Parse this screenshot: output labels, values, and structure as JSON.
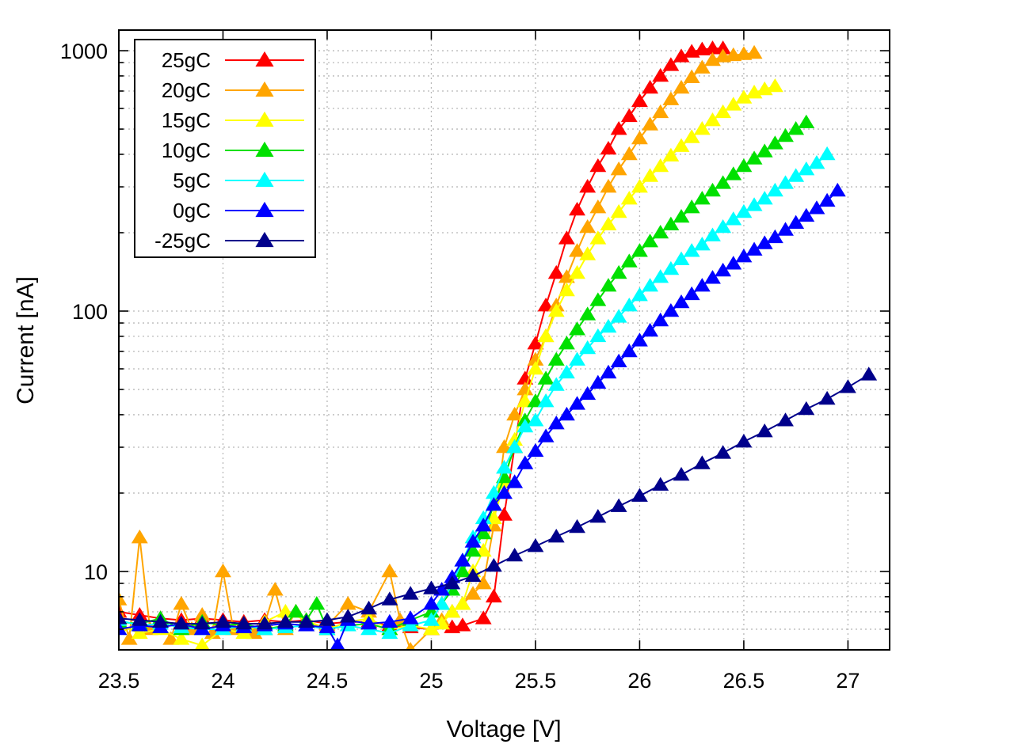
{
  "chart_data": {
    "type": "line",
    "title": "",
    "xlabel": "Voltage [V]",
    "ylabel": "Current [nA]",
    "xlim": [
      23.5,
      27.2
    ],
    "ylim": [
      5,
      1200
    ],
    "yscale": "log",
    "grid": true,
    "legend_position": "top-left",
    "x_ticks": [
      23.5,
      24,
      24.5,
      25,
      25.5,
      26,
      26.5,
      27
    ],
    "x_tick_labels": [
      "23.5",
      "24",
      "24.5",
      "25",
      "25.5",
      "26",
      "26.5",
      "27"
    ],
    "y_ticks": [
      10,
      100,
      1000
    ],
    "y_tick_labels": [
      "10",
      "100",
      "1000"
    ],
    "series": [
      {
        "name": "25gC",
        "color": "#ff0000",
        "x": [
          23.5,
          23.6,
          23.7,
          23.8,
          23.9,
          24.0,
          24.1,
          24.2,
          24.3,
          24.4,
          24.5,
          24.6,
          24.7,
          24.8,
          24.9,
          25.0,
          25.1,
          25.15,
          25.25,
          25.3,
          25.35,
          25.4,
          25.45,
          25.5,
          25.55,
          25.6,
          25.65,
          25.7,
          25.75,
          25.8,
          25.85,
          25.9,
          25.95,
          26.0,
          26.05,
          26.1,
          26.15,
          26.2,
          26.25,
          26.3,
          26.35,
          26.4
        ],
        "y": [
          7.0,
          6.8,
          6.6,
          6.5,
          6.6,
          6.5,
          6.4,
          6.5,
          6.4,
          6.5,
          6.3,
          6.4,
          6.4,
          6.2,
          6.1,
          6.0,
          6.1,
          6.2,
          6.6,
          8.0,
          16.5,
          30,
          55,
          75,
          105,
          140,
          190,
          245,
          300,
          360,
          420,
          500,
          560,
          640,
          720,
          800,
          880,
          950,
          990,
          1010,
          1020,
          1020
        ]
      },
      {
        "name": "20gC",
        "color": "#ffa500",
        "x": [
          23.5,
          23.55,
          23.6,
          23.65,
          23.7,
          23.75,
          23.8,
          23.85,
          23.9,
          23.95,
          24.0,
          24.05,
          24.1,
          24.15,
          24.2,
          24.25,
          24.3,
          24.35,
          24.4,
          24.5,
          24.6,
          24.7,
          24.8,
          24.85,
          24.9,
          25.0,
          25.05,
          25.1,
          25.15,
          25.2,
          25.25,
          25.3,
          25.35,
          25.4,
          25.45,
          25.5,
          25.55,
          25.6,
          25.65,
          25.7,
          25.75,
          25.8,
          25.85,
          25.9,
          25.95,
          26.0,
          26.05,
          26.1,
          26.15,
          26.2,
          26.25,
          26.3,
          26.35,
          26.4,
          26.45,
          26.5,
          26.55
        ],
        "y": [
          7.8,
          5.5,
          13.5,
          6.0,
          6.5,
          5.5,
          7.5,
          6.0,
          6.8,
          5.8,
          10.0,
          6.0,
          6.2,
          5.8,
          6.3,
          8.5,
          6.0,
          7.0,
          6.2,
          6.2,
          7.5,
          7.0,
          10.0,
          6.5,
          5.0,
          6.0,
          6.5,
          7.0,
          7.5,
          8.2,
          9.0,
          15,
          30,
          40,
          50,
          65,
          80,
          105,
          135,
          170,
          210,
          250,
          300,
          350,
          400,
          460,
          520,
          580,
          650,
          720,
          790,
          860,
          920,
          950,
          960,
          970,
          980
        ]
      },
      {
        "name": "15gC",
        "color": "#ffff00",
        "x": [
          23.5,
          23.6,
          23.7,
          23.8,
          23.9,
          24.0,
          24.1,
          24.2,
          24.3,
          24.4,
          24.5,
          24.6,
          24.7,
          24.8,
          24.9,
          25.0,
          25.05,
          25.1,
          25.15,
          25.2,
          25.25,
          25.3,
          25.35,
          25.4,
          25.45,
          25.5,
          25.55,
          25.6,
          25.65,
          25.7,
          25.75,
          25.8,
          25.85,
          25.9,
          25.95,
          26.0,
          26.05,
          26.1,
          26.15,
          26.2,
          26.25,
          26.3,
          26.35,
          26.4,
          26.45,
          26.5,
          26.55,
          26.6,
          26.65
        ],
        "y": [
          6.2,
          5.8,
          6.0,
          5.5,
          5.2,
          6.0,
          5.8,
          6.4,
          7.0,
          6.5,
          6.0,
          6.4,
          6.6,
          6.0,
          6.2,
          6.0,
          6.3,
          7.0,
          7.5,
          10.0,
          12.0,
          16.0,
          22.0,
          32.0,
          45,
          60,
          80,
          100,
          120,
          140,
          165,
          190,
          215,
          240,
          270,
          300,
          330,
          360,
          395,
          430,
          465,
          500,
          540,
          580,
          620,
          660,
          690,
          710,
          730
        ]
      },
      {
        "name": "10gC",
        "color": "#00e000",
        "x": [
          23.5,
          23.6,
          23.7,
          23.8,
          23.9,
          24.0,
          24.1,
          24.2,
          24.3,
          24.35,
          24.4,
          24.45,
          24.5,
          24.6,
          24.7,
          24.8,
          24.9,
          25.0,
          25.05,
          25.1,
          25.15,
          25.2,
          25.25,
          25.3,
          25.35,
          25.4,
          25.45,
          25.5,
          25.55,
          25.6,
          25.65,
          25.7,
          25.75,
          25.8,
          25.85,
          25.9,
          25.95,
          26.0,
          26.05,
          26.1,
          26.15,
          26.2,
          26.25,
          26.3,
          26.35,
          26.4,
          26.45,
          26.5,
          26.55,
          26.6,
          26.65,
          26.7,
          26.75,
          26.8
        ],
        "y": [
          6.4,
          6.3,
          6.6,
          6.0,
          6.4,
          6.2,
          6.3,
          6.0,
          6.2,
          7.0,
          6.5,
          7.5,
          6.0,
          6.2,
          6.3,
          6.0,
          6.5,
          7.0,
          7.5,
          8.5,
          10.0,
          12.0,
          14.0,
          18.0,
          23.0,
          30.0,
          38.0,
          45.0,
          55,
          65,
          75,
          85,
          97,
          110,
          125,
          140,
          155,
          170,
          185,
          200,
          215,
          230,
          250,
          270,
          290,
          310,
          335,
          360,
          385,
          410,
          440,
          470,
          500,
          530
        ]
      },
      {
        "name": "5gC",
        "color": "#00ffff",
        "x": [
          23.5,
          23.6,
          23.7,
          23.8,
          23.9,
          24.0,
          24.1,
          24.2,
          24.3,
          24.4,
          24.5,
          24.6,
          24.7,
          24.8,
          24.9,
          25.0,
          25.05,
          25.1,
          25.15,
          25.2,
          25.25,
          25.3,
          25.35,
          25.4,
          25.45,
          25.5,
          25.55,
          25.6,
          25.65,
          25.7,
          25.75,
          25.8,
          25.85,
          25.9,
          25.95,
          26.0,
          26.05,
          26.1,
          26.15,
          26.2,
          26.25,
          26.3,
          26.35,
          26.4,
          26.45,
          26.5,
          26.55,
          26.6,
          26.65,
          26.7,
          26.75,
          26.8,
          26.85,
          26.9
        ],
        "y": [
          6.5,
          6.2,
          6.3,
          6.1,
          6.0,
          6.0,
          6.2,
          6.0,
          6.1,
          6.2,
          6.0,
          6.2,
          6.0,
          5.8,
          6.2,
          6.5,
          7.5,
          9.0,
          11.0,
          13.5,
          16.0,
          20.0,
          25.0,
          30.0,
          36.0,
          38.0,
          45.0,
          52.0,
          58,
          65,
          72,
          80,
          87,
          95,
          105,
          115,
          125,
          135,
          145,
          158,
          170,
          180,
          195,
          210,
          225,
          240,
          255,
          270,
          290,
          310,
          330,
          350,
          370,
          400
        ]
      },
      {
        "name": "0gC",
        "color": "#0000ff",
        "x": [
          23.5,
          23.6,
          23.7,
          23.8,
          23.9,
          24.0,
          24.1,
          24.2,
          24.3,
          24.4,
          24.5,
          24.55,
          24.6,
          24.7,
          24.8,
          24.9,
          25.0,
          25.05,
          25.1,
          25.15,
          25.2,
          25.25,
          25.3,
          25.35,
          25.4,
          25.45,
          25.5,
          25.55,
          25.6,
          25.65,
          25.7,
          25.75,
          25.8,
          25.85,
          25.9,
          25.95,
          26.0,
          26.05,
          26.1,
          26.15,
          26.2,
          26.25,
          26.3,
          26.35,
          26.4,
          26.45,
          26.5,
          26.55,
          26.6,
          26.65,
          26.7,
          26.75,
          26.8,
          26.85,
          26.9,
          26.95
        ],
        "y": [
          6.0,
          6.2,
          6.1,
          6.3,
          6.0,
          6.2,
          6.1,
          6.2,
          6.3,
          6.2,
          6.1,
          5.2,
          6.5,
          6.3,
          6.4,
          6.6,
          7.5,
          8.5,
          9.5,
          11.0,
          13.0,
          15.0,
          18.0,
          20.0,
          22.0,
          26.0,
          29.0,
          33.0,
          37.0,
          40,
          44,
          48,
          53,
          58,
          64,
          70,
          77,
          84,
          92,
          100,
          108,
          116,
          125,
          134,
          143,
          152,
          162,
          172,
          182,
          192,
          205,
          218,
          232,
          248,
          265,
          290
        ]
      },
      {
        "name": "-25gC",
        "color": "#00008b",
        "x": [
          23.5,
          23.6,
          23.7,
          23.8,
          23.9,
          24.0,
          24.1,
          24.2,
          24.3,
          24.4,
          24.5,
          24.6,
          24.7,
          24.8,
          24.9,
          25.0,
          25.1,
          25.2,
          25.3,
          25.4,
          25.5,
          25.6,
          25.7,
          25.8,
          25.9,
          26.0,
          26.1,
          26.2,
          26.3,
          26.4,
          26.5,
          26.6,
          26.7,
          26.8,
          26.9,
          27.0,
          27.1
        ],
        "y": [
          6.6,
          6.5,
          6.4,
          6.3,
          6.3,
          6.4,
          6.3,
          6.3,
          6.4,
          6.4,
          6.5,
          6.7,
          7.2,
          7.8,
          8.2,
          8.6,
          9.0,
          9.6,
          10.5,
          11.5,
          12.5,
          13.6,
          14.8,
          16.2,
          17.8,
          19.5,
          21.5,
          23.5,
          26.0,
          28.5,
          31.5,
          34.5,
          38.0,
          42.0,
          46.0,
          51.0,
          57.0
        ]
      }
    ]
  }
}
